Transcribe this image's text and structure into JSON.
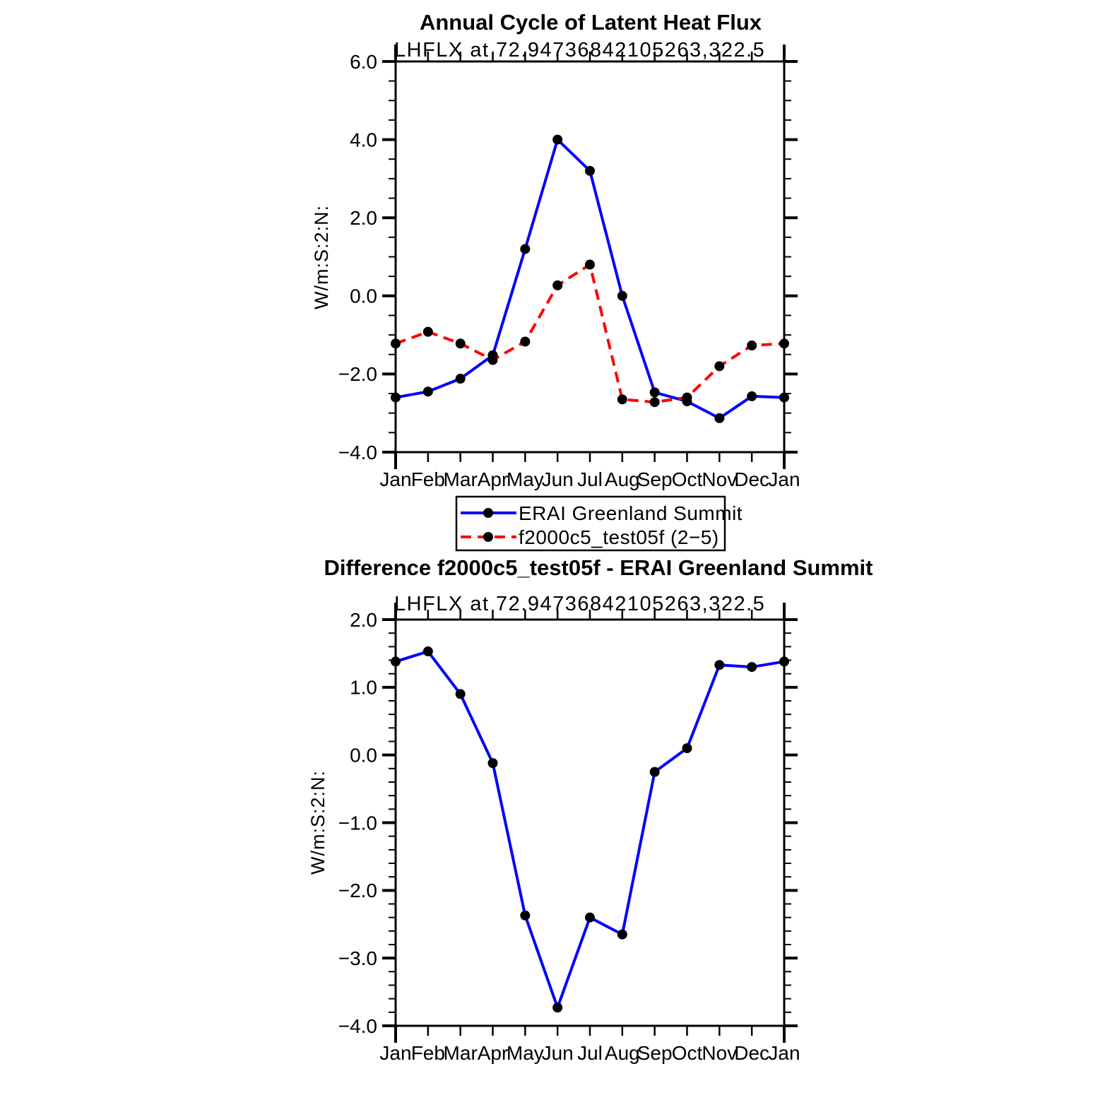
{
  "figure": {
    "background": "#ffffff",
    "axis_color": "#000000",
    "marker_color": "#000000"
  },
  "legend": {
    "entries": [
      {
        "label": "ERAI Greenland Summit",
        "color": "#0000ff",
        "style": "solid"
      },
      {
        "label": "f2000c5_test05f (2−5)",
        "color": "#ff0000",
        "style": "dashed"
      }
    ]
  },
  "chart_data": [
    {
      "type": "line",
      "title": "Annual Cycle of Latent Heat Flux",
      "subtitle": "LHFLX at 72.94736842105263,322.5",
      "ylabel": "W/m:S:2:N:",
      "xlabel": "",
      "categories": [
        "Jan",
        "Feb",
        "Mar",
        "Apr",
        "May",
        "Jun",
        "Jul",
        "Aug",
        "Sep",
        "Oct",
        "Nov",
        "Dec",
        "Jan"
      ],
      "ylim": [
        -4.0,
        6.0
      ],
      "ytick_major": 2.0,
      "ytick_minor": 0.5,
      "ytick_labels": [
        "6.0",
        "4.0",
        "2.0",
        "0.0",
        "−2.0",
        "−4.0"
      ],
      "grid": false,
      "legend_position": "below",
      "series": [
        {
          "name": "ERAI Greenland Summit",
          "color": "#0000ff",
          "style": "solid",
          "values": [
            -2.6,
            -2.45,
            -2.12,
            -1.52,
            1.2,
            4.0,
            3.2,
            0.0,
            -2.47,
            -2.7,
            -3.13,
            -2.57,
            -2.6
          ]
        },
        {
          "name": "f2000c5_test05f (2−5)",
          "color": "#ff0000",
          "style": "dashed",
          "values": [
            -1.22,
            -0.92,
            -1.22,
            -1.64,
            -1.17,
            0.27,
            0.8,
            -2.65,
            -2.72,
            -2.6,
            -1.8,
            -1.27,
            -1.22
          ]
        }
      ]
    },
    {
      "type": "line",
      "title": "Difference f2000c5_test05f - ERAI Greenland Summit",
      "subtitle": "LHFLX at 72.94736842105263,322.5",
      "ylabel": "W/m:S:2:N:",
      "xlabel": "",
      "categories": [
        "Jan",
        "Feb",
        "Mar",
        "Apr",
        "May",
        "Jun",
        "Jul",
        "Aug",
        "Sep",
        "Oct",
        "Nov",
        "Dec",
        "Jan"
      ],
      "ylim": [
        -4.0,
        2.0
      ],
      "ytick_major": 1.0,
      "ytick_minor": 0.2,
      "ytick_labels": [
        "2.0",
        "1.0",
        "0.0",
        "−1.0",
        "−2.0",
        "−3.0",
        "−4.0"
      ],
      "grid": false,
      "legend_position": "none",
      "series": [
        {
          "name": "difference",
          "color": "#0000ff",
          "style": "solid",
          "values": [
            1.38,
            1.53,
            0.9,
            -0.12,
            -2.37,
            -3.73,
            -2.4,
            -2.65,
            -0.25,
            0.1,
            1.33,
            1.3,
            1.38
          ]
        }
      ]
    }
  ]
}
